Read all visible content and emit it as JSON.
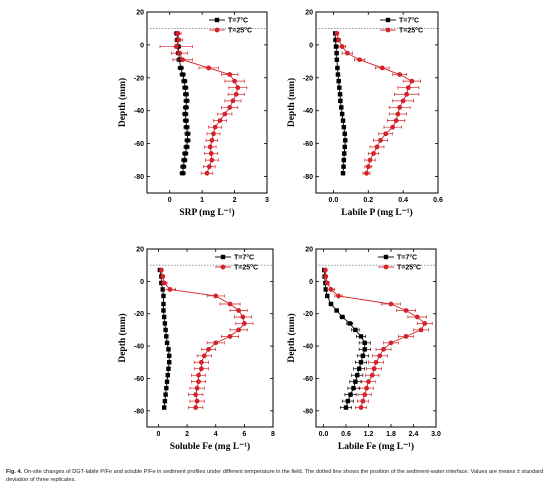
{
  "caption": {
    "figure_no": "Fig. 4.",
    "text": "On-site changes of DGT-labile P/Fe and soluble P/Fe in sediment profiles under different temperature in the field. The dotted line shows the position of the sediment-water interface. Values are means ± standard deviation of three replicates."
  },
  "colors": {
    "t7": "#000000",
    "t25": "#d2232a",
    "axis": "#000000",
    "interface": "#888888"
  },
  "chart_data": [
    {
      "type": "scatter",
      "panel": "srp",
      "xlabel": "SRP (mg L⁻¹)",
      "ylabel": "Depth (mm)",
      "xlim": [
        -0.7,
        3.0
      ],
      "xticks": [
        0,
        1,
        2,
        3
      ],
      "xtick_labels": [
        "0",
        "1",
        "2",
        "3"
      ],
      "ylim": [
        -90,
        20
      ],
      "yticks": [
        20,
        0,
        -20,
        -40,
        -60,
        -80
      ],
      "ytick_labels": [
        "20",
        "0",
        "-20",
        "-40",
        "-60",
        "-80"
      ],
      "interface_depth": 10,
      "grid": false,
      "legend": "top-right",
      "series": [
        {
          "name": "T=7°C",
          "marker": "square",
          "depth": [
            7,
            3,
            -1,
            -5,
            -9,
            -14,
            -18,
            -22,
            -26,
            -30,
            -34,
            -38,
            -42,
            -46,
            -50,
            -54,
            -58,
            -62,
            -66,
            -70,
            -74,
            -78
          ],
          "values": [
            0.22,
            0.24,
            0.26,
            0.28,
            0.3,
            0.34,
            0.4,
            0.45,
            0.48,
            0.5,
            0.52,
            0.5,
            0.48,
            0.5,
            0.52,
            0.55,
            0.55,
            0.52,
            0.48,
            0.45,
            0.42,
            0.4
          ],
          "error": [
            0.08,
            0.08,
            0.08,
            0.08,
            0.08,
            0.08,
            0.08,
            0.08,
            0.08,
            0.08,
            0.08,
            0.08,
            0.08,
            0.08,
            0.08,
            0.08,
            0.08,
            0.08,
            0.08,
            0.08,
            0.08,
            0.08
          ]
        },
        {
          "name": "T=25°C",
          "marker": "circle",
          "depth": [
            7,
            3,
            -1,
            -5,
            -9,
            -14,
            -18,
            -22,
            -26,
            -30,
            -34,
            -38,
            -42,
            -46,
            -50,
            -54,
            -58,
            -62,
            -66,
            -70,
            -74,
            -78
          ],
          "values": [
            0.25,
            0.28,
            0.2,
            0.3,
            0.4,
            1.2,
            1.85,
            2.0,
            2.1,
            2.05,
            1.95,
            1.85,
            1.7,
            1.55,
            1.4,
            1.35,
            1.3,
            1.25,
            1.28,
            1.3,
            1.22,
            1.15
          ],
          "error": [
            0.1,
            0.12,
            0.5,
            0.25,
            0.3,
            0.3,
            0.25,
            0.3,
            0.28,
            0.25,
            0.25,
            0.25,
            0.22,
            0.2,
            0.2,
            0.2,
            0.18,
            0.18,
            0.2,
            0.2,
            0.18,
            0.18
          ]
        }
      ]
    },
    {
      "type": "scatter",
      "panel": "labile-p",
      "xlabel": "Labile P (mg L⁻¹)",
      "ylabel": "Depth (mm)",
      "xlim": [
        -0.1,
        0.6
      ],
      "xticks": [
        0.0,
        0.2,
        0.4,
        0.6
      ],
      "xtick_labels": [
        "0.0",
        "0.2",
        "0.4",
        "0.6"
      ],
      "ylim": [
        -90,
        20
      ],
      "yticks": [
        20,
        0,
        -20,
        -40,
        -60,
        -80
      ],
      "ytick_labels": [
        "20",
        "0",
        "-20",
        "-40",
        "-60",
        "-80"
      ],
      "interface_depth": 10,
      "grid": false,
      "legend": "top-right",
      "series": [
        {
          "name": "T=7°C",
          "marker": "square",
          "depth": [
            7,
            3,
            -1,
            -5,
            -9,
            -14,
            -18,
            -22,
            -26,
            -30,
            -34,
            -38,
            -42,
            -46,
            -50,
            -54,
            -58,
            -62,
            -66,
            -70,
            -74,
            -78
          ],
          "values": [
            0.01,
            0.012,
            0.015,
            0.018,
            0.02,
            0.023,
            0.026,
            0.03,
            0.034,
            0.038,
            0.04,
            0.045,
            0.05,
            0.055,
            0.06,
            0.065,
            0.068,
            0.065,
            0.062,
            0.06,
            0.058,
            0.055
          ],
          "error": [
            0.01,
            0.01,
            0.01,
            0.01,
            0.01,
            0.01,
            0.01,
            0.01,
            0.01,
            0.01,
            0.01,
            0.01,
            0.01,
            0.01,
            0.01,
            0.01,
            0.01,
            0.01,
            0.01,
            0.01,
            0.01,
            0.01
          ]
        },
        {
          "name": "T=25°C",
          "marker": "circle",
          "depth": [
            7,
            3,
            -1,
            -5,
            -9,
            -14,
            -18,
            -22,
            -26,
            -30,
            -34,
            -38,
            -42,
            -46,
            -50,
            -54,
            -58,
            -62,
            -66,
            -70,
            -74,
            -78
          ],
          "values": [
            0.02,
            0.03,
            0.05,
            0.08,
            0.15,
            0.28,
            0.38,
            0.45,
            0.43,
            0.42,
            0.4,
            0.38,
            0.37,
            0.36,
            0.34,
            0.3,
            0.27,
            0.25,
            0.23,
            0.21,
            0.2,
            0.19
          ],
          "error": [
            0.01,
            0.01,
            0.02,
            0.03,
            0.03,
            0.04,
            0.04,
            0.05,
            0.06,
            0.07,
            0.06,
            0.06,
            0.05,
            0.05,
            0.05,
            0.04,
            0.04,
            0.04,
            0.03,
            0.03,
            0.02,
            0.02
          ]
        }
      ]
    },
    {
      "type": "scatter",
      "panel": "soluble-fe",
      "xlabel": "Soluble Fe (mg L⁻¹)",
      "ylabel": "Depth (mm)",
      "xlim": [
        -0.8,
        8.0
      ],
      "xticks": [
        0,
        2,
        4,
        6,
        8
      ],
      "xtick_labels": [
        "0",
        "2",
        "4",
        "6",
        "8"
      ],
      "ylim": [
        -90,
        20
      ],
      "yticks": [
        20,
        0,
        -20,
        -40,
        -60,
        -80
      ],
      "ytick_labels": [
        "20",
        "0",
        "-20",
        "-40",
        "-60",
        "-80"
      ],
      "interface_depth": 10,
      "grid": false,
      "legend": "top-right",
      "series": [
        {
          "name": "T=7°C",
          "marker": "square",
          "depth": [
            7,
            3,
            -1,
            -5,
            -9,
            -14,
            -18,
            -22,
            -26,
            -30,
            -34,
            -38,
            -42,
            -46,
            -50,
            -54,
            -58,
            -62,
            -66,
            -70,
            -74,
            -78
          ],
          "values": [
            0.1,
            0.2,
            0.2,
            0.3,
            0.35,
            0.35,
            0.35,
            0.4,
            0.45,
            0.5,
            0.55,
            0.6,
            0.7,
            0.75,
            0.75,
            0.7,
            0.65,
            0.6,
            0.55,
            0.5,
            0.45,
            0.4
          ],
          "error": [
            0.1,
            0.1,
            0.1,
            0.1,
            0.1,
            0.1,
            0.1,
            0.1,
            0.1,
            0.1,
            0.12,
            0.12,
            0.12,
            0.12,
            0.12,
            0.12,
            0.1,
            0.1,
            0.1,
            0.1,
            0.1,
            0.1
          ]
        },
        {
          "name": "T=25°C",
          "marker": "circle",
          "depth": [
            7,
            3,
            -1,
            -5,
            -9,
            -14,
            -18,
            -22,
            -26,
            -30,
            -34,
            -38,
            -42,
            -46,
            -50,
            -54,
            -58,
            -62,
            -66,
            -70,
            -74,
            -78
          ],
          "values": [
            0.2,
            0.3,
            0.4,
            0.8,
            4.0,
            5.0,
            5.6,
            5.9,
            6.0,
            5.6,
            5.0,
            4.0,
            3.5,
            3.2,
            3.0,
            3.0,
            2.8,
            2.8,
            2.7,
            2.6,
            2.7,
            2.6
          ],
          "error": [
            0.1,
            0.1,
            0.2,
            0.4,
            0.6,
            0.7,
            0.6,
            0.6,
            0.6,
            0.6,
            0.6,
            0.6,
            0.5,
            0.5,
            0.5,
            0.5,
            0.5,
            0.5,
            0.5,
            0.5,
            0.5,
            0.5
          ]
        }
      ]
    },
    {
      "type": "scatter",
      "panel": "labile-fe",
      "xlabel": "Labile Fe (mg L⁻¹)",
      "ylabel": "Depth (mm)",
      "xlim": [
        -0.2,
        3.0
      ],
      "xticks": [
        0.0,
        0.6,
        1.2,
        1.8,
        2.4,
        3.0
      ],
      "xtick_labels": [
        "0.0",
        "0.6",
        "1.2",
        "1.8",
        "2.4",
        "3.0"
      ],
      "ylim": [
        -90,
        20
      ],
      "yticks": [
        20,
        0,
        -20,
        -40,
        -60,
        -80
      ],
      "ytick_labels": [
        "20",
        "0",
        "-20",
        "-40",
        "-60",
        "-80"
      ],
      "interface_depth": 10,
      "grid": false,
      "legend": "top-right",
      "series": [
        {
          "name": "T=7°C",
          "marker": "square",
          "depth": [
            7,
            3,
            -1,
            -5,
            -9,
            -14,
            -18,
            -22,
            -26,
            -30,
            -34,
            -38,
            -42,
            -46,
            -50,
            -54,
            -58,
            -62,
            -66,
            -70,
            -74,
            -78
          ],
          "values": [
            0.02,
            0.03,
            0.05,
            0.06,
            0.1,
            0.2,
            0.35,
            0.5,
            0.7,
            0.85,
            1.0,
            1.1,
            1.1,
            1.05,
            1.0,
            0.95,
            0.9,
            0.85,
            0.8,
            0.72,
            0.65,
            0.6
          ],
          "error": [
            0.02,
            0.02,
            0.03,
            0.03,
            0.04,
            0.05,
            0.05,
            0.06,
            0.08,
            0.1,
            0.12,
            0.15,
            0.15,
            0.15,
            0.15,
            0.15,
            0.15,
            0.15,
            0.15,
            0.15,
            0.15,
            0.15
          ]
        },
        {
          "name": "T=25°C",
          "marker": "circle",
          "depth": [
            7,
            3,
            -1,
            -5,
            -9,
            -14,
            -18,
            -22,
            -26,
            -30,
            -34,
            -38,
            -42,
            -46,
            -50,
            -54,
            -58,
            -62,
            -66,
            -70,
            -74,
            -78
          ],
          "values": [
            0.05,
            0.06,
            0.1,
            0.2,
            0.4,
            1.8,
            2.2,
            2.5,
            2.7,
            2.6,
            2.2,
            1.8,
            1.6,
            1.5,
            1.4,
            1.35,
            1.3,
            1.2,
            1.15,
            1.1,
            1.05,
            1.0
          ],
          "error": [
            0.02,
            0.03,
            0.05,
            0.1,
            0.1,
            0.25,
            0.25,
            0.25,
            0.2,
            0.2,
            0.2,
            0.2,
            0.2,
            0.2,
            0.2,
            0.2,
            0.18,
            0.18,
            0.18,
            0.18,
            0.15,
            0.15
          ]
        }
      ]
    }
  ]
}
